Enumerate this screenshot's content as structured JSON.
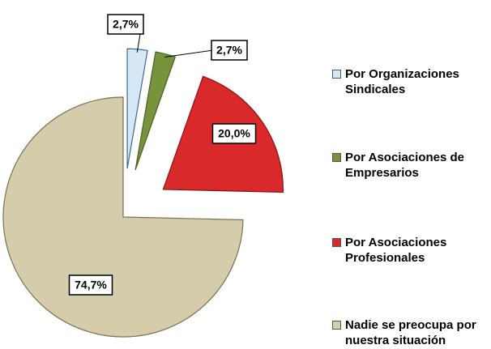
{
  "chart_data": {
    "type": "pie",
    "categories": [
      "Por Organizaciones Sindicales",
      "Por Asociaciones de Empresarios",
      "Por Asociaciones Profesionales",
      "Nadie se preocupa por nuestra situación"
    ],
    "values": [
      2.7,
      2.7,
      20.0,
      74.7
    ],
    "value_labels": [
      "2,7%",
      "2,7%",
      "20,0%",
      "74,7%"
    ],
    "colors": [
      "#d6e8f6",
      "#77933c",
      "#d9292b",
      "#d5ccab"
    ],
    "legend": "right"
  }
}
